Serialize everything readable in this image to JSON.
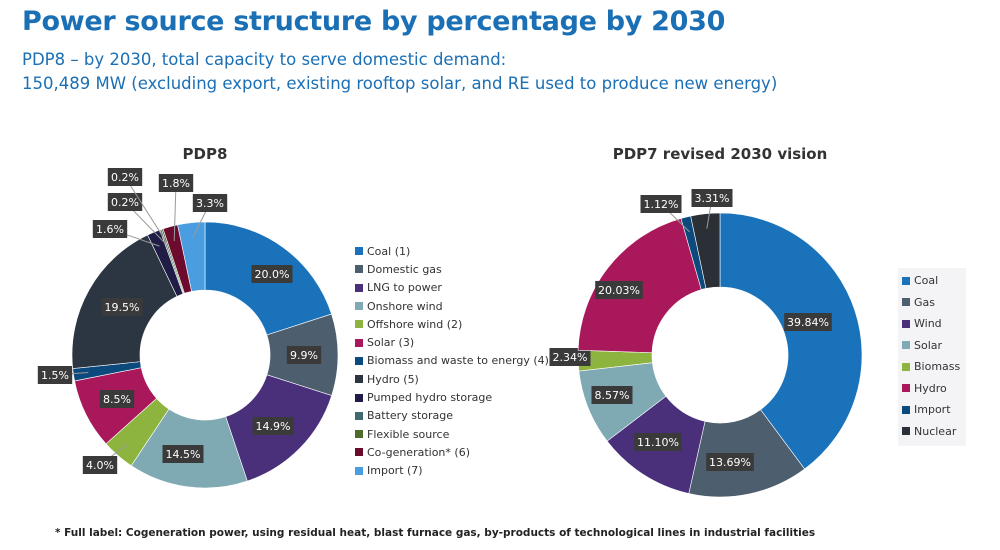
{
  "title": "Power source structure by percentage by 2030",
  "subtitle_line1": "PDP8 – by 2030, total capacity to serve domestic demand:",
  "subtitle_line2": "150,489 MW (excluding export, existing rooftop solar, and RE used to produce new energy)",
  "footnote": "* Full label: Cogeneration power, using residual heat, blast furnace gas, by-products of technological lines in industrial facilities",
  "chart_data": [
    {
      "type": "pie",
      "donut": true,
      "title": "PDP8",
      "legend": "right",
      "categories": [
        "Coal (1)",
        "Domestic gas",
        "LNG to power",
        "Onshore wind",
        "Offshore wind (2)",
        "Solar (3)",
        "Biomass and waste to energy (4)",
        "Hydro (5)",
        "Pumped hydro storage",
        "Battery storage",
        "Flexible source",
        "Co-generation* (6)",
        "Import (7)"
      ],
      "values": [
        20.0,
        9.9,
        14.9,
        14.5,
        4.0,
        8.5,
        1.5,
        19.5,
        1.6,
        0.2,
        0.2,
        1.8,
        3.3
      ],
      "labels": [
        "20.0%",
        "9.9%",
        "14.9%",
        "14.5%",
        "4.0%",
        "8.5%",
        "1.5%",
        "19.5%",
        "1.6%",
        "0.2%",
        "0.2%",
        "1.8%",
        "3.3%"
      ],
      "colors": [
        "#1a72bb",
        "#4d5f6e",
        "#4a2f7a",
        "#7fa9b3",
        "#8db43e",
        "#a8185a",
        "#0c4a7e",
        "#2b3642",
        "#1f1d45",
        "#3f6a72",
        "#4e6b2a",
        "#6d0b2e",
        "#4a9ddf"
      ]
    },
    {
      "type": "pie",
      "donut": true,
      "title": "PDP7 revised 2030 vision",
      "legend": "right",
      "categories": [
        "Coal",
        "Gas",
        "Wind",
        "Solar",
        "Biomass",
        "Hydro",
        "Import",
        "Nuclear"
      ],
      "values": [
        39.84,
        13.69,
        11.1,
        8.57,
        2.34,
        20.03,
        1.12,
        3.31
      ],
      "labels": [
        "39.84%",
        "13.69%",
        "11.10%",
        "8.57%",
        "2.34%",
        "20.03%",
        "1.12%",
        "3.31%"
      ],
      "colors": [
        "#1a72bb",
        "#4d5f6e",
        "#4a2f7a",
        "#7fa9b3",
        "#8db43e",
        "#a8185a",
        "#0c4a7e",
        "#2b3036"
      ]
    }
  ]
}
